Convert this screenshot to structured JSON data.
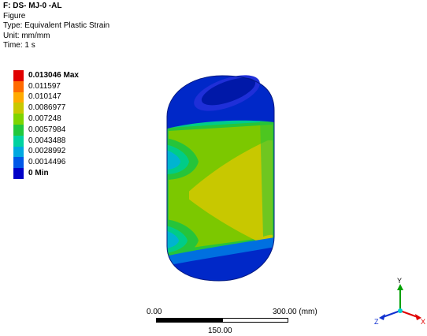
{
  "info": {
    "title": "F: DS- MJ-0 -AL",
    "line1": "Figure",
    "line2": "Type: Equivalent Plastic Strain",
    "line3": "Unit: mm/mm",
    "line4": "Time: 1 s"
  },
  "legend": [
    {
      "label": "0.013046 Max",
      "color": "#e00000",
      "bold": true
    },
    {
      "label": "0.011597",
      "color": "#ff6a00",
      "bold": false
    },
    {
      "label": "0.010147",
      "color": "#ffaa00",
      "bold": false
    },
    {
      "label": "0.0086977",
      "color": "#c8c800",
      "bold": false
    },
    {
      "label": "0.007248",
      "color": "#7ed400",
      "bold": false
    },
    {
      "label": "0.0057984",
      "color": "#22c83c",
      "bold": false
    },
    {
      "label": "0.0043488",
      "color": "#00d2a0",
      "bold": false
    },
    {
      "label": "0.0028992",
      "color": "#00a8e0",
      "bold": false
    },
    {
      "label": "0.0014496",
      "color": "#0058e8",
      "bold": false
    },
    {
      "label": "0 Min",
      "color": "#0000c8",
      "bold": true
    }
  ],
  "scale": {
    "start": "0.00",
    "end": "300.00 (mm)",
    "mid": "150.00"
  },
  "triad": {
    "y_label": "Y",
    "x_label": "X",
    "z_label": "Z",
    "y_color": "#00a000",
    "x_color": "#e00000",
    "z_color": "#1030d0"
  }
}
